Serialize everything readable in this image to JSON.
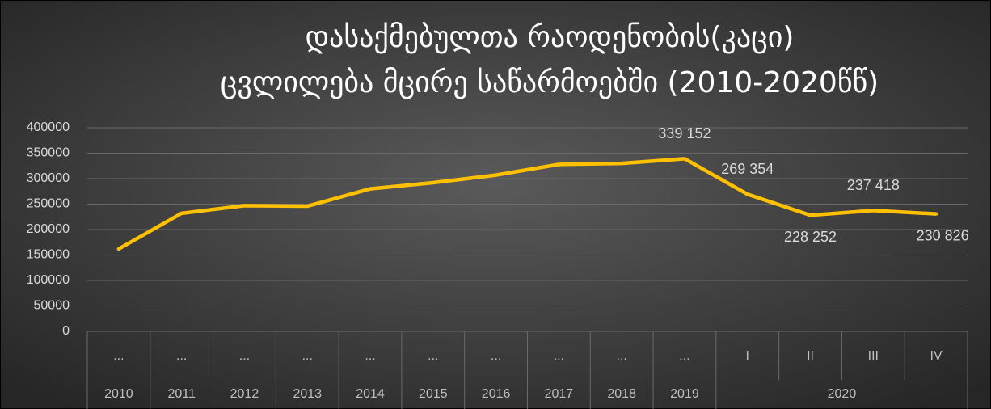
{
  "chart_data": {
    "type": "line",
    "title": [
      "დასაქმებულთა რაოდენობის(კაცი)",
      "ცვლილება მცირე საწარმოებში (2010-2020წწ)"
    ],
    "categories": [
      "...",
      "...",
      "...",
      "...",
      "...",
      "...",
      "...",
      "...",
      "...",
      "...",
      "I",
      "II",
      "III",
      "IV"
    ],
    "category_groups": [
      {
        "name": "2010",
        "count": 1
      },
      {
        "name": "2011",
        "count": 1
      },
      {
        "name": "2012",
        "count": 1
      },
      {
        "name": "2013",
        "count": 1
      },
      {
        "name": "2014",
        "count": 1
      },
      {
        "name": "2015",
        "count": 1
      },
      {
        "name": "2016",
        "count": 1
      },
      {
        "name": "2017",
        "count": 1
      },
      {
        "name": "2018",
        "count": 1
      },
      {
        "name": "2019",
        "count": 1
      },
      {
        "name": "2020",
        "count": 4
      }
    ],
    "values": [
      162000,
      232000,
      247000,
      246000,
      280000,
      292000,
      307000,
      328000,
      330000,
      339152,
      269354,
      228252,
      237418,
      230826
    ],
    "value_labels": [
      null,
      null,
      null,
      null,
      null,
      null,
      null,
      null,
      null,
      "339 152",
      "269 354",
      "228 252",
      "237 418",
      "230 826"
    ],
    "color": "#ffc000",
    "ylim": [
      0,
      400000
    ],
    "yticks": [
      0,
      50000,
      100000,
      150000,
      200000,
      250000,
      300000,
      350000,
      400000
    ],
    "grid": true
  }
}
